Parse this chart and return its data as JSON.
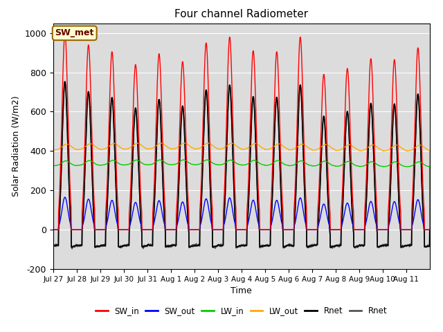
{
  "title": "Four channel Radiometer",
  "xlabel": "Time",
  "ylabel": "Solar Radiation (W/m2)",
  "annotation": "SW_met",
  "x_tick_labels": [
    "Jul 27",
    "Jul 28",
    "Jul 29",
    "Jul 30",
    "Jul 31",
    "Aug 1",
    "Aug 2",
    "Aug 3",
    "Aug 4",
    "Aug 5",
    "Aug 6",
    "Aug 7",
    "Aug 8",
    "Aug 9",
    "Aug 10",
    "Aug 11"
  ],
  "ylim": [
    -200,
    1050
  ],
  "yticks": [
    -200,
    0,
    200,
    400,
    600,
    800,
    1000
  ],
  "n_days": 16,
  "background_color": "#dcdcdc",
  "sw_in_peaks": [
    1000,
    940,
    905,
    840,
    895,
    855,
    950,
    980,
    910,
    905,
    980,
    790,
    820,
    870,
    865,
    925
  ],
  "lines": {
    "SW_in": {
      "color": "#ff0000",
      "lw": 1.0
    },
    "SW_out": {
      "color": "#0000ff",
      "lw": 1.0
    },
    "LW_in": {
      "color": "#00cc00",
      "lw": 1.0
    },
    "LW_out": {
      "color": "#ffaa00",
      "lw": 1.0
    },
    "Rnet_black": {
      "color": "#000000",
      "lw": 1.2
    },
    "Rnet_dark": {
      "color": "#555555",
      "lw": 1.2
    }
  },
  "legend_labels": [
    "SW_in",
    "SW_out",
    "LW_in",
    "LW_out",
    "Rnet",
    "Rnet"
  ],
  "legend_colors": [
    "#ff0000",
    "#0000ff",
    "#00cc00",
    "#ffaa00",
    "#000000",
    "#555555"
  ]
}
